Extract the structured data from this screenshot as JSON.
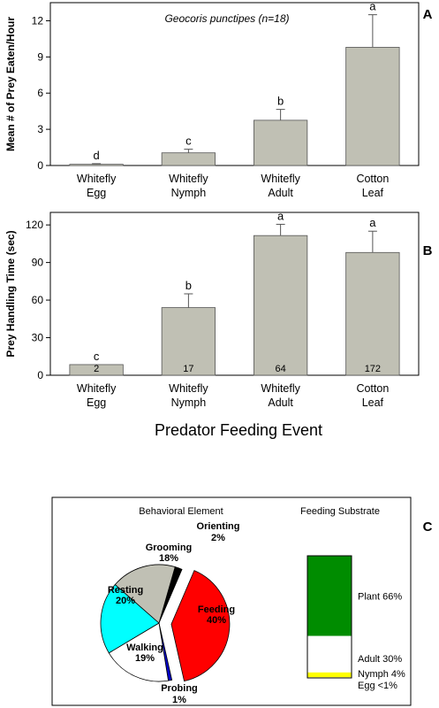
{
  "chart_data": [
    {
      "panel": "A",
      "type": "bar",
      "title": "Geocoris punctipes (n=18)",
      "ylabel": "Mean # of Prey Eaten/Hour",
      "xlabel": "",
      "ylim": [
        0,
        13.5
      ],
      "yticks": [
        0,
        3,
        6,
        9,
        12
      ],
      "categories": [
        [
          "Whitefly",
          "Egg"
        ],
        [
          "Whitefly",
          "Nymph"
        ],
        [
          "Whitefly",
          "Adult"
        ],
        [
          "Cotton",
          "Leaf"
        ]
      ],
      "values": [
        0.1,
        1.05,
        3.75,
        9.8
      ],
      "errors": [
        0.05,
        0.3,
        0.9,
        2.7
      ],
      "letters": [
        "d",
        "c",
        "b",
        "a"
      ],
      "bar_color": "#c0c0b4"
    },
    {
      "panel": "B",
      "type": "bar",
      "title": "",
      "ylabel": "Prey Handling Time (sec)",
      "xlabel": "Predator Feeding Event",
      "ylim": [
        0,
        130
      ],
      "yticks": [
        0,
        30,
        60,
        90,
        120
      ],
      "categories": [
        [
          "Whitefly",
          "Egg"
        ],
        [
          "Whitefly",
          "Nymph"
        ],
        [
          "Whitefly",
          "Adult"
        ],
        [
          "Cotton",
          "Leaf"
        ]
      ],
      "values": [
        8.5,
        54,
        111.5,
        98
      ],
      "errors": [
        0,
        11,
        9,
        17
      ],
      "letters": [
        "c",
        "b",
        "a",
        "a"
      ],
      "bar_labels": [
        "2",
        "17",
        "64",
        "172"
      ],
      "bar_color": "#c0c0b4"
    },
    {
      "panel": "C",
      "type": "pie",
      "title": "Behavioral Element",
      "slices": [
        {
          "label": "Orienting",
          "pct": 2,
          "value_text": "2%",
          "color": "#000000"
        },
        {
          "label": "Feeding",
          "pct": 40,
          "value_text": "40%",
          "color": "#ff0000"
        },
        {
          "label": "Probing",
          "pct": 1,
          "value_text": "1%",
          "color": "#0000c8"
        },
        {
          "label": "Walking",
          "pct": 19,
          "value_text": "19%",
          "color": "#ffffff"
        },
        {
          "label": "Resting",
          "pct": 20,
          "value_text": "20%",
          "color": "#00ffff"
        },
        {
          "label": "Grooming",
          "pct": 18,
          "value_text": "18%",
          "color": "#c0c0b4"
        }
      ]
    },
    {
      "panel": "C",
      "type": "bar",
      "title": "Feeding Substrate",
      "segments": [
        {
          "label": "Plant 66%",
          "pct": 66,
          "color": "#008c00"
        },
        {
          "label": "Adult 30%",
          "pct": 30,
          "color": "#ffffff"
        },
        {
          "label": "Nymph 4%",
          "pct": 4,
          "color": "#ffff00"
        },
        {
          "label": "Egg <1%",
          "pct": 0.5,
          "color": "#ffffff"
        }
      ]
    }
  ],
  "panel_labels": [
    "A",
    "B",
    "C"
  ]
}
